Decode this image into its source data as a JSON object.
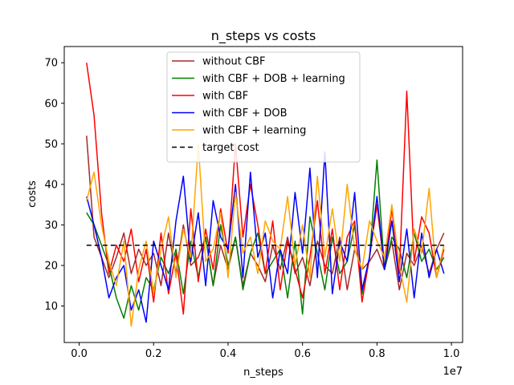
{
  "chart_data": {
    "type": "line",
    "title": "n_steps vs costs",
    "xlabel": "n_steps",
    "ylabel": "costs",
    "x_offset_label": "1e7",
    "xlim": [
      -0.04,
      1.03
    ],
    "ylim": [
      1,
      74
    ],
    "x_ticks": [
      0.0,
      0.2,
      0.4,
      0.6,
      0.8,
      1.0
    ],
    "x_tick_labels": [
      "0.0",
      "0.2",
      "0.4",
      "0.6",
      "0.8",
      "1.0"
    ],
    "y_ticks": [
      10,
      20,
      30,
      40,
      50,
      60,
      70
    ],
    "y_tick_labels": [
      "10",
      "20",
      "30",
      "40",
      "50",
      "60",
      "70"
    ],
    "grid": false,
    "legend_position": "upper center",
    "x": [
      0.02,
      0.04,
      0.06,
      0.08,
      0.1,
      0.12,
      0.14,
      0.16,
      0.18,
      0.2,
      0.22,
      0.24,
      0.26,
      0.28,
      0.3,
      0.32,
      0.34,
      0.36,
      0.38,
      0.4,
      0.42,
      0.44,
      0.46,
      0.48,
      0.5,
      0.52,
      0.54,
      0.56,
      0.58,
      0.6,
      0.62,
      0.64,
      0.66,
      0.68,
      0.7,
      0.72,
      0.74,
      0.76,
      0.78,
      0.8,
      0.82,
      0.84,
      0.86,
      0.88,
      0.9,
      0.92,
      0.94,
      0.96,
      0.98
    ],
    "series": [
      {
        "name": "without CBF",
        "color": "#a52a2a",
        "dash": "",
        "values": [
          52,
          27,
          22,
          17,
          22,
          28,
          18,
          24,
          20,
          23,
          15,
          28,
          18,
          30,
          20,
          22,
          27,
          15,
          25,
          19,
          27,
          15,
          23,
          20,
          16,
          25,
          19,
          27,
          18,
          22,
          15,
          26,
          20,
          18,
          27,
          14,
          24,
          19,
          21,
          24,
          19,
          26,
          14,
          23,
          20,
          25,
          18,
          24,
          28
        ]
      },
      {
        "name": "with CBF + DOB + learning",
        "color": "#008000",
        "dash": "",
        "values": [
          33,
          30,
          25,
          20,
          12,
          7,
          15,
          9,
          17,
          14,
          22,
          18,
          24,
          13,
          26,
          17,
          27,
          15,
          30,
          20,
          27,
          14,
          23,
          28,
          18,
          21,
          24,
          12,
          26,
          8,
          32,
          23,
          14,
          27,
          18,
          21,
          30,
          13,
          22,
          46,
          19,
          27,
          24,
          17,
          28,
          21,
          24,
          19,
          22
        ]
      },
      {
        "name": "with CBF",
        "color": "#ff0000",
        "dash": "",
        "values": [
          70,
          57,
          33,
          18,
          25,
          21,
          29,
          16,
          24,
          11,
          28,
          13,
          23,
          8,
          34,
          16,
          29,
          19,
          34,
          23,
          50,
          27,
          40,
          30,
          18,
          31,
          14,
          26,
          19,
          12,
          22,
          36,
          18,
          29,
          14,
          27,
          31,
          11,
          22,
          35,
          19,
          34,
          18,
          63,
          21,
          32,
          28,
          17,
          24
        ]
      },
      {
        "name": "with CBF + DOB",
        "color": "#0000ff",
        "dash": "",
        "values": [
          37,
          30,
          22,
          12,
          17,
          20,
          9,
          14,
          6,
          26,
          20,
          14,
          31,
          42,
          21,
          33,
          15,
          36,
          27,
          24,
          40,
          17,
          43,
          22,
          28,
          12,
          24,
          18,
          38,
          23,
          44,
          17,
          48,
          13,
          26,
          21,
          38,
          14,
          22,
          37,
          19,
          31,
          16,
          29,
          12,
          28,
          17,
          24,
          18
        ]
      },
      {
        "name": "with CBF + learning",
        "color": "#ffa500",
        "dash": "",
        "values": [
          36,
          43,
          30,
          21,
          15,
          26,
          5,
          19,
          26,
          13,
          24,
          32,
          17,
          29,
          22,
          50,
          21,
          24,
          33,
          17,
          38,
          23,
          27,
          18,
          31,
          26,
          24,
          37,
          20,
          30,
          17,
          42,
          22,
          34,
          21,
          40,
          24,
          19,
          31,
          26,
          22,
          35,
          20,
          11,
          29,
          23,
          39,
          17,
          25
        ]
      },
      {
        "name": "target cost",
        "color": "#000000",
        "dash": "6,4",
        "values": [
          25,
          25,
          25,
          25,
          25,
          25,
          25,
          25,
          25,
          25,
          25,
          25,
          25,
          25,
          25,
          25,
          25,
          25,
          25,
          25,
          25,
          25,
          25,
          25,
          25,
          25,
          25,
          25,
          25,
          25,
          25,
          25,
          25,
          25,
          25,
          25,
          25,
          25,
          25,
          25,
          25,
          25,
          25,
          25,
          25,
          25,
          25,
          25,
          25
        ]
      }
    ]
  }
}
